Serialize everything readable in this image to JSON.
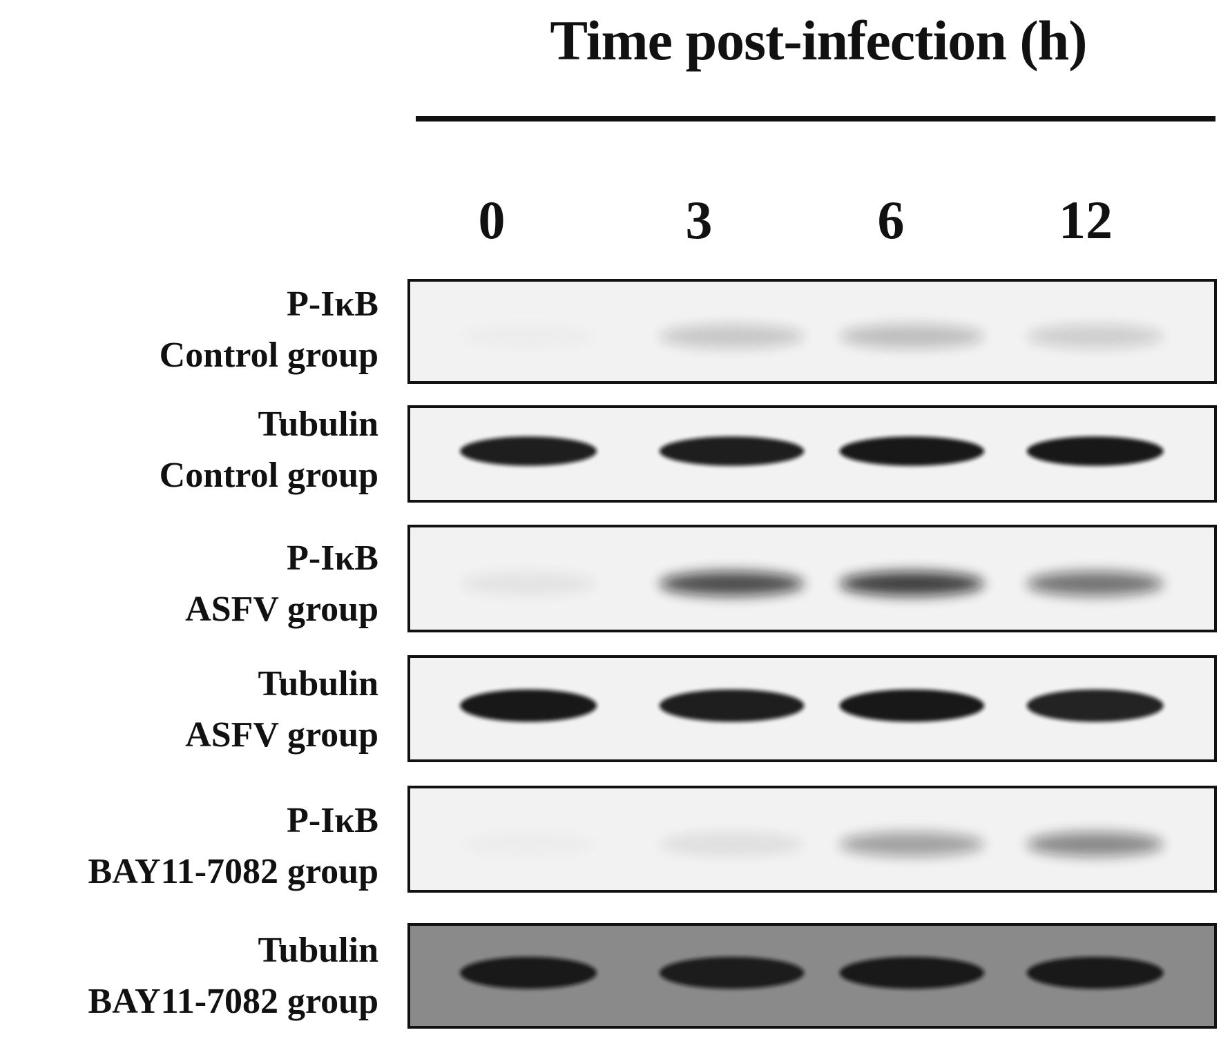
{
  "figure": {
    "title": "Time post-infection (h)",
    "lanes": [
      "0",
      "3",
      "6",
      "12"
    ],
    "panels": [
      {
        "protein": "P-IκB",
        "group": "Control group",
        "band_intensity": [
          0.02,
          0.18,
          0.22,
          0.15
        ]
      },
      {
        "protein": "Tubulin",
        "group": "Control group",
        "band_intensity": [
          0.92,
          0.92,
          0.95,
          0.95
        ]
      },
      {
        "protein": "P-IκB",
        "group": "ASFV  group",
        "band_intensity": [
          0.06,
          0.72,
          0.78,
          0.55
        ]
      },
      {
        "protein": "Tubulin",
        "group": "ASFV  group",
        "band_intensity": [
          0.95,
          0.92,
          0.95,
          0.9
        ]
      },
      {
        "protein": "P-IκB",
        "group": "BAY11-7082 group",
        "band_intensity": [
          0.02,
          0.08,
          0.35,
          0.45
        ]
      },
      {
        "protein": "Tubulin",
        "group": "BAY11-7082 group",
        "band_intensity": [
          0.9,
          0.88,
          0.9,
          0.9
        ]
      }
    ],
    "colors": {
      "ink": "#111111",
      "membrane": "#f2f2f2",
      "membrane_dark": "#8a8a8a",
      "band": "#111111"
    }
  }
}
